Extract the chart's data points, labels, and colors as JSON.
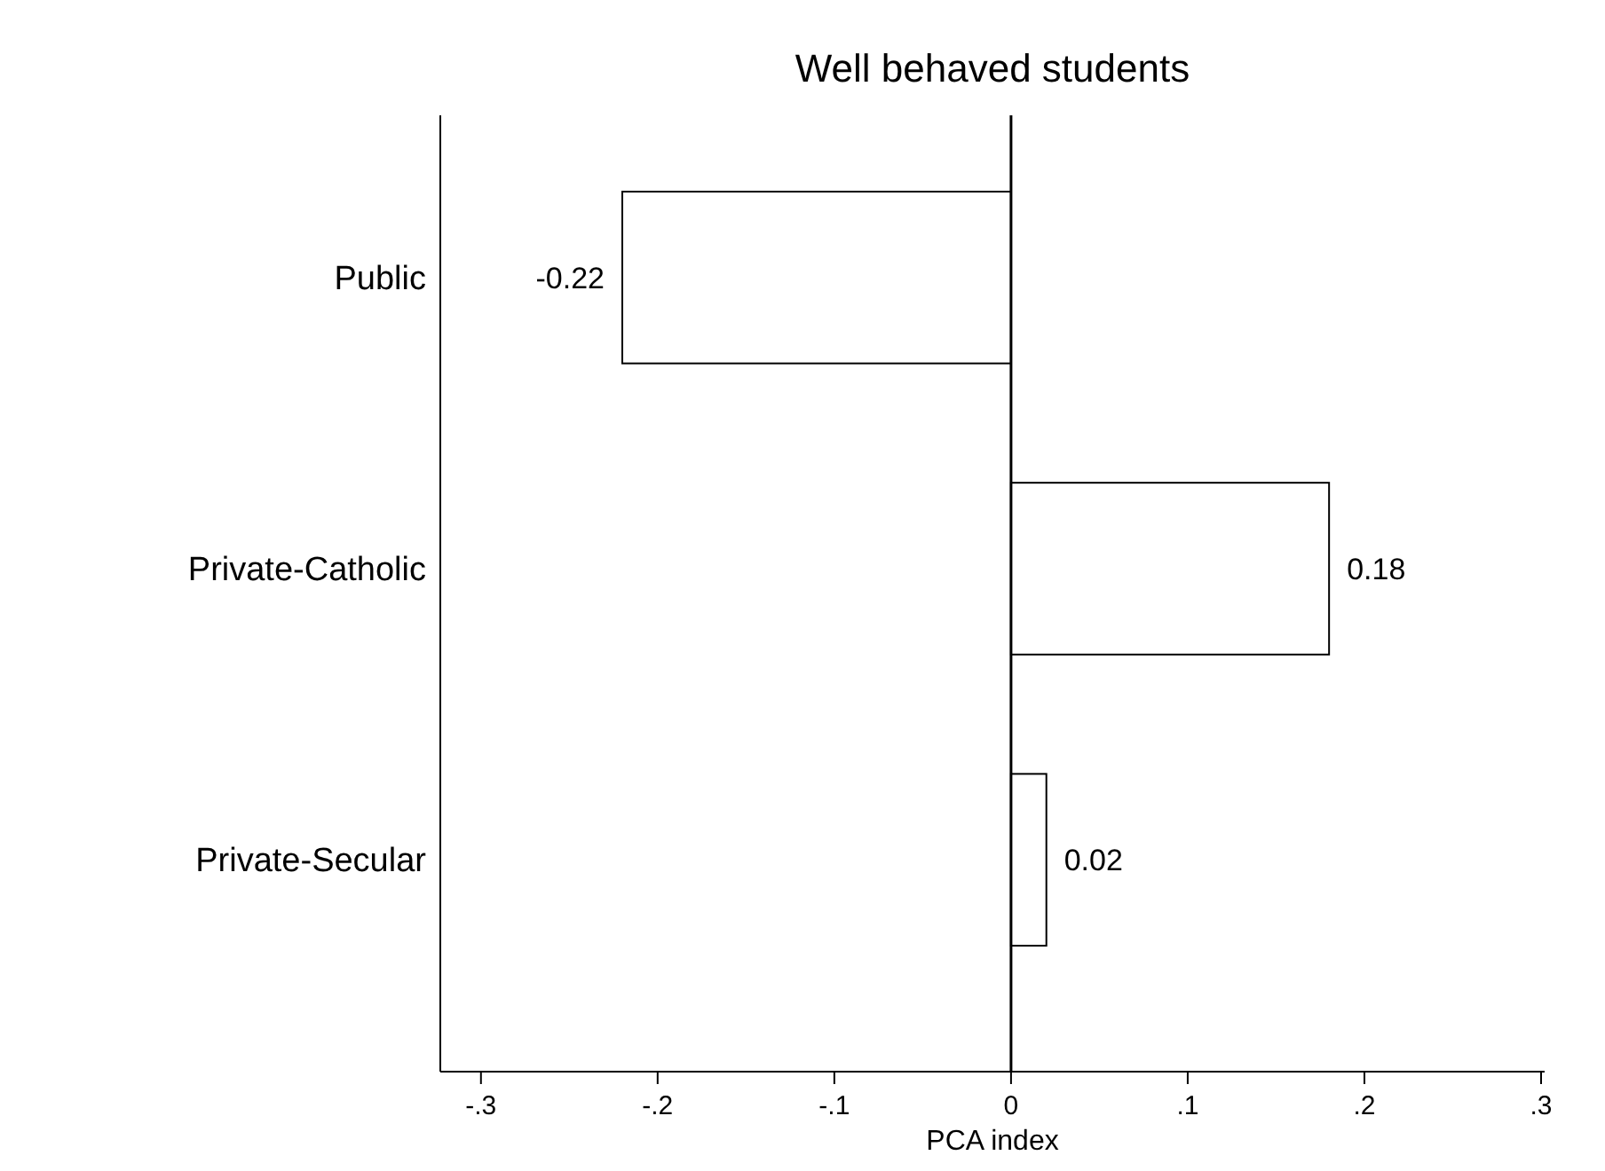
{
  "chart_data": {
    "type": "bar",
    "orientation": "horizontal",
    "title": "Well behaved students",
    "xlabel": "PCA index",
    "categories": [
      "Public",
      "Private-Catholic",
      "Private-Secular"
    ],
    "values": [
      -0.22,
      0.18,
      0.02
    ],
    "color": "#ffffff",
    "xlim": [
      -0.323,
      0.302
    ],
    "xticks": [
      {
        "value": -0.3,
        "label": "-.3"
      },
      {
        "value": -0.2,
        "label": "-.2"
      },
      {
        "value": -0.1,
        "label": "-.1"
      },
      0,
      {
        "value": 0.1,
        "label": ".1"
      },
      {
        "value": 0.2,
        "label": ".2"
      },
      {
        "value": 0.3,
        "label": ".3"
      }
    ],
    "ref_lines": [
      {
        "axis": "x",
        "value": 0,
        "color": "#000000"
      }
    ],
    "data_labels": true,
    "grid": false
  }
}
